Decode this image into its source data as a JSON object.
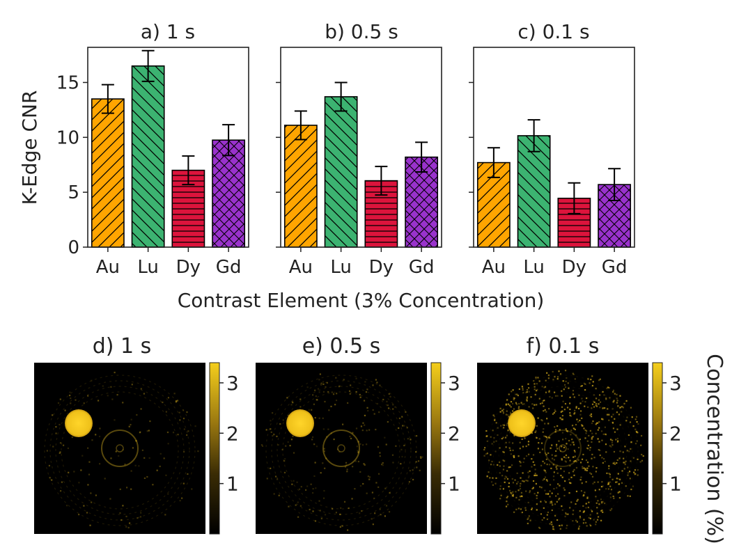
{
  "chart_data": [
    {
      "type": "bar",
      "title": "a) 1 s",
      "categories": [
        "Au",
        "Lu",
        "Dy",
        "Gd"
      ],
      "values": [
        13.5,
        16.5,
        7.0,
        9.75
      ],
      "errors": [
        1.3,
        1.4,
        1.3,
        1.4
      ],
      "ylim": [
        0,
        18.2
      ],
      "yticks": [
        "0",
        "5",
        "10",
        "15"
      ],
      "ylabel": "K-Edge CNR"
    },
    {
      "type": "bar",
      "title": "b) 0.5 s",
      "categories": [
        "Au",
        "Lu",
        "Dy",
        "Gd"
      ],
      "values": [
        11.1,
        13.7,
        6.05,
        8.2
      ],
      "errors": [
        1.3,
        1.3,
        1.3,
        1.35
      ],
      "ylim": [
        0,
        18.2
      ]
    },
    {
      "type": "bar",
      "title": "c) 0.1 s",
      "categories": [
        "Au",
        "Lu",
        "Dy",
        "Gd"
      ],
      "values": [
        7.7,
        10.15,
        4.45,
        5.7
      ],
      "errors": [
        1.35,
        1.45,
        1.4,
        1.45
      ],
      "ylim": [
        0,
        18.2
      ]
    },
    {
      "type": "heatmap",
      "title": "d) 1 s",
      "colorbar_range": [
        0,
        3.4
      ],
      "colorbar_ticks": [
        "1",
        "2",
        "3"
      ]
    },
    {
      "type": "heatmap",
      "title": "e) 0.5 s",
      "colorbar_range": [
        0,
        3.4
      ],
      "colorbar_ticks": [
        "1",
        "2",
        "3"
      ]
    },
    {
      "type": "heatmap",
      "title": "f) 0.1 s",
      "colorbar_range": [
        0,
        3.4
      ],
      "colorbar_ticks": [
        "1",
        "2",
        "3"
      ],
      "colorbar_label": "Concentration (%)"
    }
  ],
  "shared": {
    "xlabel": "Contrast Element (3% Concentration)"
  },
  "colors": {
    "Au": "#FFA500",
    "Lu": "#3CB371",
    "Dy": "#DC143C",
    "Gd": "#9932CC",
    "hotspot": "#F2C81E"
  },
  "hatches": {
    "Au": "diag-up",
    "Lu": "diag-down",
    "Dy": "horizontal",
    "Gd": "cross"
  }
}
